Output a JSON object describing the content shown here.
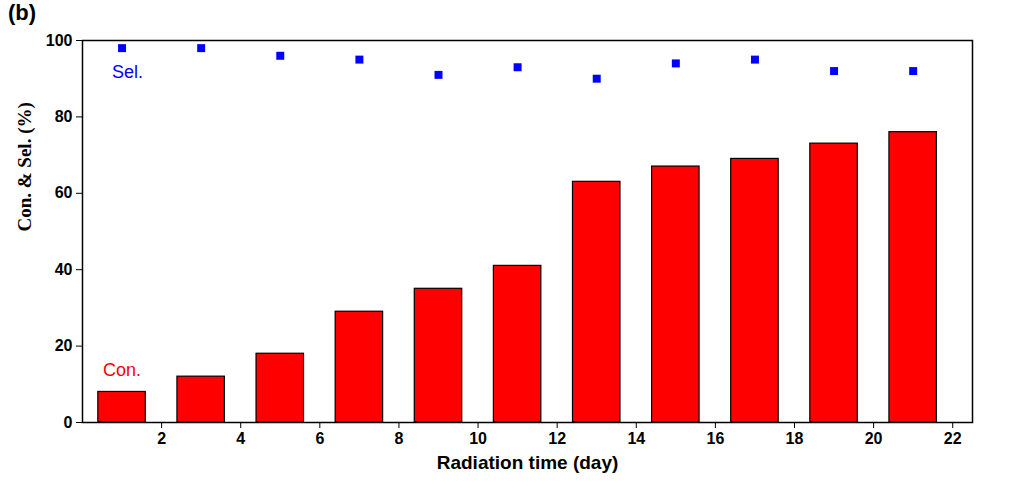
{
  "chart_data": {
    "type": "bar",
    "panel_label": "(b)",
    "x_label": "Radiation time (day)",
    "y_label": "Con. & Sel. (%)",
    "x": [
      1,
      3,
      5,
      7,
      9,
      11,
      13,
      15,
      17,
      19,
      21
    ],
    "series": [
      {
        "name": "Con.",
        "type": "bar",
        "color": "#ff0000",
        "values": [
          8,
          12,
          18,
          29,
          35,
          41,
          63,
          67,
          69,
          73,
          76
        ]
      },
      {
        "name": "Sel.",
        "type": "scatter",
        "marker": "square",
        "color": "#0000ff",
        "values": [
          98,
          98,
          96,
          95,
          91,
          93,
          90,
          94,
          95,
          92,
          92
        ]
      }
    ],
    "xlim": [
      0,
      22.5
    ],
    "xticks": [
      2,
      4,
      6,
      8,
      10,
      12,
      14,
      16,
      18,
      20,
      22
    ],
    "ylim": [
      0,
      100
    ],
    "yticks": [
      0,
      20,
      40,
      60,
      80,
      100
    ]
  }
}
